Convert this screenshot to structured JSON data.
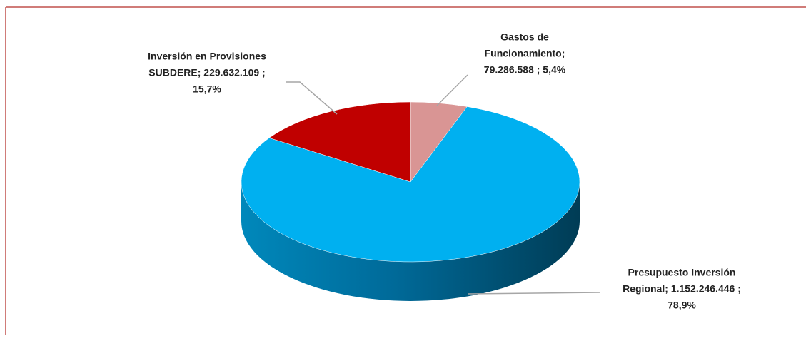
{
  "chart_data": {
    "type": "pie3d",
    "values": [
      79286588,
      1152246446,
      229632109
    ],
    "value_labels": [
      [
        "Gastos de",
        "Funcionamiento;",
        "79.286.588 ; 5,4%"
      ],
      [
        "Presupuesto Inversión",
        "Regional;  1.152.246.446 ;",
        "78,9%"
      ],
      [
        "Inversión en Provisiones",
        "SUBDERE;  229.632.109 ;",
        "15,7%"
      ]
    ],
    "colors": [
      "#d99594",
      "#00b0f0",
      "#c00000"
    ],
    "side_colors": [
      "#a06060",
      "#005a80",
      "#800000"
    ]
  }
}
